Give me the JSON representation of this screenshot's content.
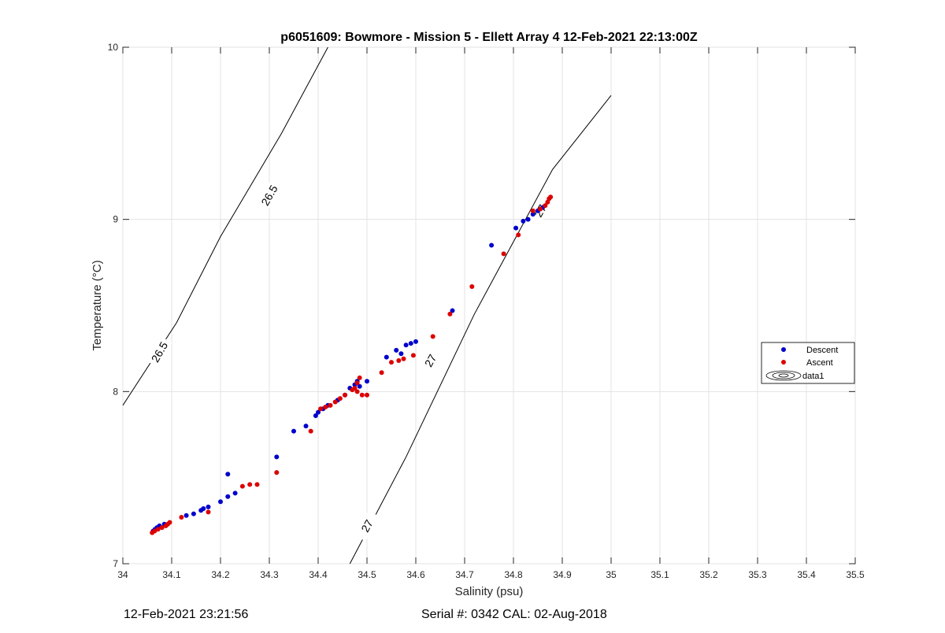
{
  "chart_data": {
    "type": "scatter",
    "title": "p6051609: Bowmore - Mission 5 - Ellett Array 4 12-Feb-2021 22:13:00Z",
    "xlabel": "Salinity (psu)",
    "ylabel": "Temperature (°C)",
    "xlim": [
      34,
      35.5
    ],
    "ylim": [
      7,
      10
    ],
    "xticks": [
      "34",
      "34.1",
      "34.2",
      "34.3",
      "34.4",
      "34.5",
      "34.6",
      "34.7",
      "34.8",
      "34.9",
      "35",
      "35.1",
      "35.2",
      "35.3",
      "35.4",
      "35.5"
    ],
    "yticks": [
      "7",
      "8",
      "9",
      "10"
    ],
    "grid": true,
    "legend_position": "right",
    "legend": [
      "Descent",
      "Ascent",
      "data1"
    ],
    "series": [
      {
        "name": "Descent",
        "color": "#0000cc",
        "points": [
          [
            34.062,
            7.19
          ],
          [
            34.066,
            7.2
          ],
          [
            34.07,
            7.21
          ],
          [
            34.075,
            7.22
          ],
          [
            34.085,
            7.23
          ],
          [
            34.13,
            7.28
          ],
          [
            34.145,
            7.29
          ],
          [
            34.16,
            7.31
          ],
          [
            34.165,
            7.32
          ],
          [
            34.175,
            7.33
          ],
          [
            34.2,
            7.36
          ],
          [
            34.215,
            7.39
          ],
          [
            34.215,
            7.52
          ],
          [
            34.23,
            7.41
          ],
          [
            34.315,
            7.62
          ],
          [
            34.35,
            7.77
          ],
          [
            34.375,
            7.8
          ],
          [
            34.395,
            7.86
          ],
          [
            34.4,
            7.88
          ],
          [
            34.41,
            7.9
          ],
          [
            34.42,
            7.92
          ],
          [
            34.44,
            7.95
          ],
          [
            34.455,
            7.98
          ],
          [
            34.465,
            8.02
          ],
          [
            34.475,
            8.04
          ],
          [
            34.48,
            8.06
          ],
          [
            34.485,
            8.03
          ],
          [
            34.5,
            8.06
          ],
          [
            34.54,
            8.2
          ],
          [
            34.56,
            8.24
          ],
          [
            34.57,
            8.22
          ],
          [
            34.58,
            8.27
          ],
          [
            34.59,
            8.28
          ],
          [
            34.6,
            8.29
          ],
          [
            34.675,
            8.47
          ],
          [
            34.755,
            8.85
          ],
          [
            34.805,
            8.95
          ],
          [
            34.82,
            8.99
          ],
          [
            34.83,
            9.0
          ],
          [
            34.84,
            9.03
          ],
          [
            34.85,
            9.05
          ],
          [
            34.86,
            9.07
          ]
        ]
      },
      {
        "name": "Ascent",
        "color": "#dd0000",
        "points": [
          [
            34.06,
            7.18
          ],
          [
            34.065,
            7.19
          ],
          [
            34.072,
            7.2
          ],
          [
            34.08,
            7.21
          ],
          [
            34.088,
            7.22
          ],
          [
            34.092,
            7.23
          ],
          [
            34.096,
            7.24
          ],
          [
            34.12,
            7.27
          ],
          [
            34.175,
            7.3
          ],
          [
            34.245,
            7.45
          ],
          [
            34.26,
            7.46
          ],
          [
            34.275,
            7.46
          ],
          [
            34.315,
            7.53
          ],
          [
            34.385,
            7.77
          ],
          [
            34.405,
            7.9
          ],
          [
            34.415,
            7.91
          ],
          [
            34.425,
            7.92
          ],
          [
            34.435,
            7.94
          ],
          [
            34.445,
            7.96
          ],
          [
            34.455,
            7.98
          ],
          [
            34.47,
            8.01
          ],
          [
            34.475,
            8.02
          ],
          [
            34.48,
            8.05
          ],
          [
            34.485,
            8.08
          ],
          [
            34.48,
            8.0
          ],
          [
            34.49,
            7.98
          ],
          [
            34.5,
            7.98
          ],
          [
            34.53,
            8.11
          ],
          [
            34.55,
            8.17
          ],
          [
            34.565,
            8.18
          ],
          [
            34.575,
            8.19
          ],
          [
            34.595,
            8.21
          ],
          [
            34.635,
            8.32
          ],
          [
            34.67,
            8.45
          ],
          [
            34.715,
            8.61
          ],
          [
            34.78,
            8.8
          ],
          [
            34.81,
            8.91
          ],
          [
            34.84,
            9.05
          ],
          [
            34.855,
            9.06
          ],
          [
            34.865,
            9.08
          ],
          [
            34.87,
            9.1
          ],
          [
            34.873,
            9.12
          ],
          [
            34.876,
            9.13
          ]
        ]
      }
    ],
    "density_contours": [
      {
        "label": "26.5",
        "points": [
          [
            34.0,
            7.92
          ],
          [
            34.11,
            8.4
          ],
          [
            34.2,
            8.9
          ],
          [
            34.325,
            9.5
          ],
          [
            34.42,
            10.0
          ]
        ],
        "label_positions": [
          [
            34.075,
            8.23
          ],
          [
            34.3,
            9.14
          ]
        ]
      },
      {
        "label": "27",
        "points": [
          [
            34.465,
            7.0
          ],
          [
            34.58,
            7.62
          ],
          [
            34.72,
            8.45
          ],
          [
            34.88,
            9.29
          ],
          [
            35.0,
            9.72
          ]
        ],
        "label_positions": [
          [
            34.63,
            8.18
          ],
          [
            34.5,
            7.22
          ],
          [
            34.855,
            9.05
          ]
        ]
      }
    ]
  },
  "footer": {
    "timestamp": "12-Feb-2021 23:21:56",
    "serial": "Serial #: 0342  CAL: 02-Aug-2018"
  }
}
